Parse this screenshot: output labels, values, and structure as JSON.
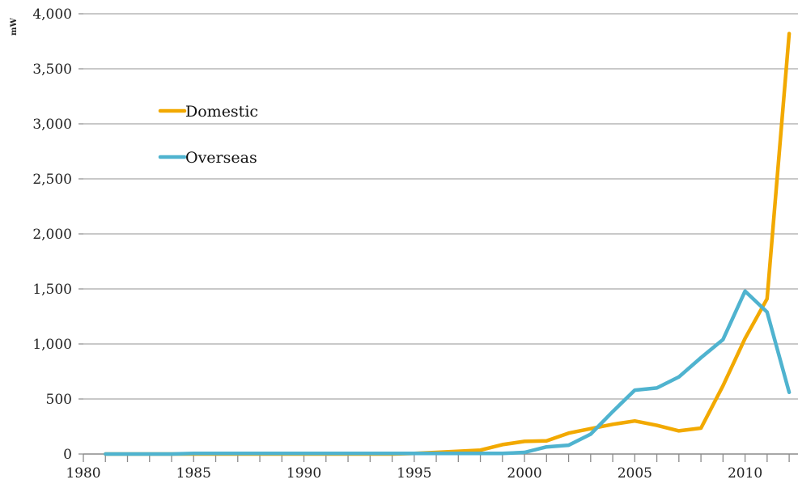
{
  "chart_data": {
    "type": "line",
    "ylabel": "mW",
    "xlim": [
      1980,
      2012.4
    ],
    "ylim": [
      0,
      4000
    ],
    "x_ticks": [
      1980,
      1985,
      1990,
      1995,
      2000,
      2005,
      2010
    ],
    "x_tick_labels": [
      "1980",
      "1985",
      "1990",
      "1995",
      "2000",
      "2005",
      "2010"
    ],
    "y_ticks": [
      0,
      500,
      1000,
      1500,
      2000,
      2500,
      3000,
      3500,
      4000
    ],
    "y_tick_labels": [
      "0",
      "500",
      "1,000",
      "1,500",
      "2,000",
      "2,500",
      "3,000",
      "3,500",
      "4,000"
    ],
    "grid": true,
    "legend_position": "upper-left",
    "x": [
      1981,
      1982,
      1983,
      1984,
      1985,
      1986,
      1987,
      1988,
      1989,
      1990,
      1991,
      1992,
      1993,
      1994,
      1995,
      1996,
      1997,
      1998,
      1999,
      2000,
      2001,
      2002,
      2003,
      2004,
      2005,
      2006,
      2007,
      2008,
      2009,
      2010,
      2011,
      2012
    ],
    "series": [
      {
        "name": "Domestic",
        "color": "#f2a900",
        "values": [
          0,
          0,
          0,
          0,
          0,
          0,
          0,
          0,
          0,
          0,
          0,
          0,
          0,
          0,
          5,
          15,
          25,
          35,
          85,
          115,
          120,
          190,
          230,
          270,
          300,
          260,
          210,
          235,
          620,
          1050,
          1410,
          3820
        ]
      },
      {
        "name": "Overseas",
        "color": "#4fb3cf",
        "values": [
          0,
          0,
          0,
          0,
          5,
          5,
          5,
          5,
          5,
          5,
          5,
          5,
          5,
          5,
          5,
          5,
          5,
          5,
          5,
          15,
          65,
          80,
          180,
          385,
          580,
          600,
          700,
          875,
          1040,
          1480,
          1290,
          560
        ]
      }
    ]
  }
}
